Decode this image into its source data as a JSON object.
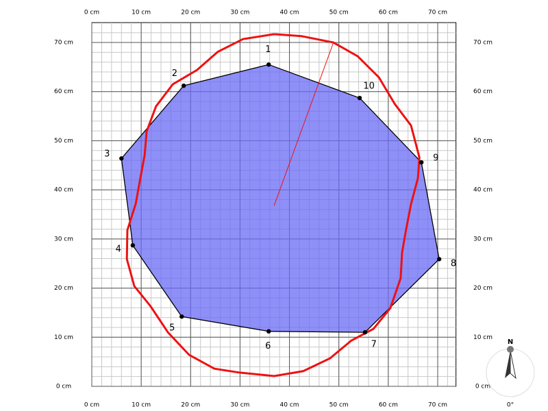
{
  "chart_data": {
    "type": "polygon-plot",
    "xlim": [
      0,
      73.7
    ],
    "ylim": [
      0,
      74
    ],
    "xticks": [
      {
        "value": 0,
        "label": "0 cm"
      },
      {
        "value": 10,
        "label": "10 cm"
      },
      {
        "value": 20,
        "label": "20 cm"
      },
      {
        "value": 30,
        "label": "30 cm"
      },
      {
        "value": 40,
        "label": "40 cm"
      },
      {
        "value": 50,
        "label": "50 cm"
      },
      {
        "value": 60,
        "label": "60 cm"
      },
      {
        "value": 70,
        "label": "70 cm"
      }
    ],
    "yticks": [
      {
        "value": 0,
        "label": "0 cm"
      },
      {
        "value": 10,
        "label": "10 cm"
      },
      {
        "value": 20,
        "label": "20 cm"
      },
      {
        "value": 30,
        "label": "30 cm"
      },
      {
        "value": 40,
        "label": "40 cm"
      },
      {
        "value": 50,
        "label": "50 cm"
      },
      {
        "value": 60,
        "label": "60 cm"
      },
      {
        "value": 70,
        "label": "70 cm"
      }
    ],
    "grid": true,
    "minor_grid_step": 2,
    "polygon": {
      "color": "#6a6af5",
      "line_color": "#000000",
      "labels": [
        "1",
        "10",
        "9",
        "8",
        "7",
        "6",
        "5",
        "4",
        "3",
        "2"
      ],
      "x": [
        35.8,
        54.2,
        66.7,
        70.3,
        55.3,
        35.8,
        18.2,
        8.3,
        6.0,
        18.6
      ],
      "y": [
        65.5,
        58.7,
        45.6,
        25.9,
        11.0,
        11.2,
        14.2,
        28.7,
        46.4,
        61.2
      ]
    },
    "outline": {
      "color": "#ee1111",
      "x": [
        36.9,
        42.4,
        48.9,
        53.8,
        58.1,
        61.3,
        64.6,
        66.3,
        66.0,
        64.6,
        63.6,
        62.8,
        62.5,
        60.4,
        57.0,
        52.5,
        48.2,
        42.8,
        36.9,
        29.9,
        24.8,
        19.7,
        15.4,
        11.9,
        8.6,
        7.1,
        7.2,
        8.9,
        9.7,
        10.7,
        11.1,
        13.0,
        16.4,
        21.3,
        25.5,
        30.6,
        36.9
      ],
      "y": [
        71.7,
        71.3,
        70.0,
        67.2,
        62.9,
        57.5,
        53.1,
        46.6,
        42.4,
        37.1,
        31.9,
        27.3,
        22.0,
        15.9,
        11.7,
        9.3,
        5.7,
        3.1,
        2.1,
        2.8,
        3.6,
        6.4,
        11.0,
        16.3,
        20.4,
        25.9,
        31.8,
        37.2,
        41.7,
        47.1,
        51.9,
        57.0,
        61.5,
        64.4,
        68.1,
        70.7,
        71.7
      ]
    },
    "pointer": {
      "color": "#ee1111",
      "x": [
        48.9,
        36.9
      ],
      "y": [
        70.0,
        36.8
      ]
    },
    "compass": {
      "label": "N",
      "heading": "0°"
    }
  }
}
